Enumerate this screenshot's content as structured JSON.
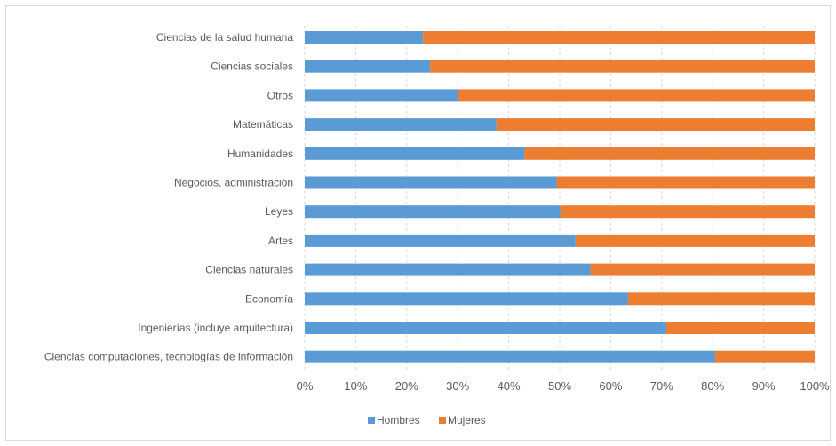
{
  "chart_data": {
    "type": "bar",
    "orientation": "horizontal",
    "stacked": "percent",
    "categories": [
      "Ciencias de la salud humana",
      "Ciencias sociales",
      "Otros",
      "Matemáticas",
      "Humanidades",
      "Negocios, administración",
      "Leyes",
      "Artes",
      "Ciencias naturales",
      "Economía",
      "Ingenierías  (incluye arquitectura)",
      "Ciencias computaciones, tecnologías de información"
    ],
    "series": [
      {
        "name": "Hombres",
        "color": "#5b9bd5",
        "values": [
          23.2,
          24.6,
          30.1,
          37.6,
          43.1,
          49.4,
          50.1,
          53.1,
          56.0,
          63.4,
          70.9,
          80.5
        ]
      },
      {
        "name": "Mujeres",
        "color": "#ed7d31",
        "values": [
          76.8,
          75.4,
          69.9,
          62.4,
          56.9,
          50.6,
          49.9,
          46.9,
          44.0,
          36.6,
          29.1,
          19.5
        ]
      }
    ],
    "x_ticks": [
      "0%",
      "10%",
      "20%",
      "30%",
      "40%",
      "50%",
      "60%",
      "70%",
      "80%",
      "90%",
      "100%"
    ],
    "xlim": [
      0,
      100
    ],
    "grid": true,
    "legend_position": "bottom"
  }
}
